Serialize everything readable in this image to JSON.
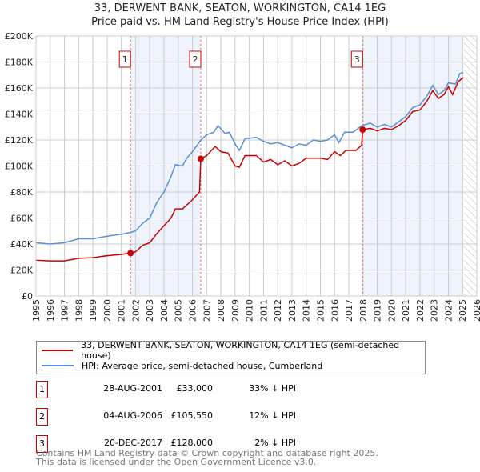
{
  "title": "33, DERWENT BANK, SEATON, WORKINGTON, CA14 1EG",
  "subtitle": "Price paid vs. HM Land Registry's House Price Index (HPI)",
  "chart_data": {
    "type": "line",
    "xlim": [
      1995,
      2026
    ],
    "ylim": [
      0,
      200000
    ],
    "yticks": [
      {
        "v": 0,
        "label": "£0"
      },
      {
        "v": 20000,
        "label": "£20K"
      },
      {
        "v": 40000,
        "label": "£40K"
      },
      {
        "v": 60000,
        "label": "£60K"
      },
      {
        "v": 80000,
        "label": "£80K"
      },
      {
        "v": 100000,
        "label": "£100K"
      },
      {
        "v": 120000,
        "label": "£120K"
      },
      {
        "v": 140000,
        "label": "£140K"
      },
      {
        "v": 160000,
        "label": "£160K"
      },
      {
        "v": 180000,
        "label": "£180K"
      },
      {
        "v": 200000,
        "label": "£200K"
      }
    ],
    "xticks": [
      "1995",
      "1996",
      "1997",
      "1998",
      "1999",
      "2000",
      "2001",
      "2002",
      "2003",
      "2004",
      "2005",
      "2006",
      "2007",
      "2008",
      "2009",
      "2010",
      "2011",
      "2012",
      "2013",
      "2014",
      "2015",
      "2016",
      "2017",
      "2018",
      "2019",
      "2020",
      "2021",
      "2022",
      "2023",
      "2024",
      "2025",
      "2026"
    ],
    "shaded": [
      [
        2001.65,
        2006.59
      ],
      [
        2017.97,
        2025.05
      ]
    ],
    "forecast_from": 2025.1,
    "series": [
      {
        "name": "33, DERWENT BANK, SEATON, WORKINGTON, CA14 1EG (semi-detached house)",
        "color": "#cc0000",
        "x": [
          1995,
          1996,
          1997,
          1998,
          1999,
          2000,
          2001,
          2001.65,
          2002,
          2002.5,
          2003,
          2003.5,
          2004,
          2004.5,
          2004.8,
          2005.3,
          2006,
          2006.5,
          2006.59,
          2007,
          2007.6,
          2008,
          2008.5,
          2009,
          2009.3,
          2009.7,
          2010.5,
          2011,
          2011.5,
          2012,
          2012.5,
          2013,
          2013.5,
          2014,
          2015,
          2015.5,
          2016,
          2016.4,
          2016.8,
          2017.5,
          2017.9,
          2017.97,
          2018.5,
          2019,
          2019.5,
          2020,
          2020.5,
          2021,
          2021.5,
          2022,
          2022.5,
          2022.9,
          2023.3,
          2023.7,
          2024,
          2024.3,
          2024.7,
          2025.05
        ],
        "y": [
          27500,
          27000,
          27000,
          29000,
          29500,
          31000,
          32000,
          33000,
          34000,
          39000,
          41000,
          48000,
          54000,
          60000,
          67000,
          67000,
          74000,
          80000,
          105550,
          108000,
          115000,
          111000,
          110000,
          100000,
          99000,
          108000,
          108000,
          103000,
          105000,
          101000,
          104000,
          100000,
          102000,
          106000,
          106000,
          105000,
          111000,
          108000,
          112000,
          112000,
          116000,
          128000,
          129000,
          127000,
          129000,
          128000,
          131000,
          135000,
          142000,
          143000,
          150000,
          158000,
          152000,
          155000,
          161000,
          155000,
          165000,
          168000
        ]
      },
      {
        "name": "HPI: Average price, semi-detached house, Cumberland",
        "color": "#5b8fd4",
        "x": [
          1995,
          1996,
          1997,
          1998,
          1999,
          2000,
          2001,
          2001.65,
          2002,
          2002.5,
          2003,
          2003.5,
          2004,
          2004.5,
          2004.8,
          2005.3,
          2005.6,
          2006,
          2006.6,
          2007,
          2007.5,
          2007.8,
          2008.3,
          2008.6,
          2009,
          2009.3,
          2009.7,
          2010.5,
          2011,
          2011.5,
          2012,
          2012.5,
          2013,
          2013.5,
          2014,
          2014.5,
          2015,
          2015.5,
          2016,
          2016.3,
          2016.7,
          2017.3,
          2017.9,
          2018.5,
          2019,
          2019.5,
          2020,
          2020.5,
          2021,
          2021.5,
          2022,
          2022.5,
          2022.9,
          2023.3,
          2023.7,
          2024,
          2024.5,
          2024.8,
          2025.05
        ],
        "y": [
          41000,
          40000,
          41000,
          44000,
          44000,
          46000,
          47500,
          49000,
          50000,
          56000,
          60000,
          72000,
          80000,
          92000,
          101000,
          100000,
          106000,
          111000,
          120000,
          124000,
          126000,
          131000,
          125000,
          126000,
          117000,
          112000,
          121000,
          122000,
          119000,
          117000,
          118000,
          116000,
          114000,
          117000,
          116000,
          120000,
          119000,
          120000,
          124000,
          118000,
          126000,
          126000,
          131000,
          133000,
          130000,
          132000,
          130000,
          134000,
          138000,
          145000,
          147000,
          154000,
          162000,
          155000,
          158000,
          164000,
          163000,
          171000,
          172000
        ]
      }
    ],
    "sales": [
      {
        "n": "1",
        "x": 2001.65,
        "y": 33000
      },
      {
        "n": "2",
        "x": 2006.59,
        "y": 105550
      },
      {
        "n": "3",
        "x": 2017.97,
        "y": 128000
      }
    ]
  },
  "legend": {
    "red": "33, DERWENT BANK, SEATON, WORKINGTON, CA14 1EG (semi-detached house)",
    "blue": "HPI: Average price, semi-detached house, Cumberland"
  },
  "table": [
    {
      "n": "1",
      "date": "28-AUG-2001",
      "price": "£33,000",
      "hpi": "33% ↓ HPI"
    },
    {
      "n": "2",
      "date": "04-AUG-2006",
      "price": "£105,550",
      "hpi": "12% ↓ HPI"
    },
    {
      "n": "3",
      "date": "20-DEC-2017",
      "price": "£128,000",
      "hpi": "2% ↓ HPI"
    }
  ],
  "footer": {
    "line1": "Contains HM Land Registry data © Crown copyright and database right 2025.",
    "line2": "This data is licensed under the Open Government Licence v3.0."
  }
}
